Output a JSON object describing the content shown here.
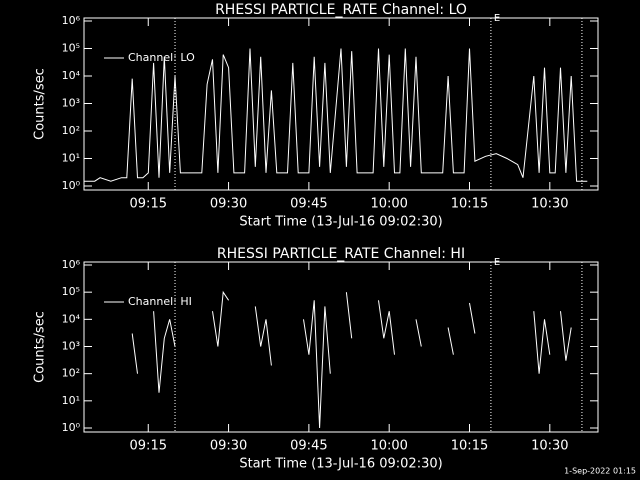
{
  "chart_data": [
    {
      "type": "line",
      "title": "RHESSI PARTICLE_RATE Channel: LO",
      "xlabel": "Start Time (13-Jul-16 09:02:30)",
      "ylabel": "Counts/sec",
      "x": [
        "09:03",
        "09:05",
        "09:06",
        "09:08",
        "09:10",
        "09:11",
        "09:12",
        "09:13",
        "09:14",
        "09:15",
        "09:16",
        "09:17",
        "09:18",
        "09:19",
        "09:20",
        "09:21",
        "09:25",
        "09:26",
        "09:27",
        "09:28",
        "09:29",
        "09:30",
        "09:31",
        "09:33",
        "09:34",
        "09:35",
        "09:36",
        "09:37",
        "09:38",
        "09:39",
        "09:41",
        "09:42",
        "09:43",
        "09:45",
        "09:46",
        "09:47",
        "09:48",
        "09:49",
        "09:51",
        "09:52",
        "09:53",
        "09:54",
        "09:57",
        "09:58",
        "09:59",
        "10:00",
        "10:01",
        "10:02",
        "10:03",
        "10:04",
        "10:05",
        "10:06",
        "10:10",
        "10:11",
        "10:12",
        "10:14",
        "10:15",
        "10:16",
        "10:18",
        "10:20",
        "10:22",
        "10:24",
        "10:25",
        "10:27",
        "10:28",
        "10:29",
        "10:30",
        "10:31",
        "10:32",
        "10:33",
        "10:34",
        "10:35",
        "10:37"
      ],
      "series": [
        {
          "name": "Channel: LO",
          "color": "#ffffff",
          "values": [
            1.5,
            1.5,
            2,
            1.5,
            2,
            2,
            8000,
            2,
            2,
            3,
            30000,
            2,
            50000,
            3,
            10000,
            3,
            3,
            5000,
            40000,
            3,
            60000,
            20000,
            3,
            3,
            100000,
            5,
            50000,
            3,
            3000,
            3,
            3,
            30000,
            3,
            3,
            50000,
            5,
            30000,
            3,
            100000,
            5,
            80000,
            3,
            3,
            100000,
            5,
            60000,
            3,
            3,
            100000,
            5,
            50000,
            3,
            3,
            10000,
            3,
            3,
            100000,
            8,
            12,
            15,
            10,
            6,
            2,
            10000,
            3,
            20000,
            3,
            3,
            20000,
            3,
            10000,
            1.5,
            1.5
          ]
        }
      ],
      "xlim": [
        "09:03",
        "10:39"
      ],
      "xticks": [
        "09:15",
        "09:30",
        "09:45",
        "10:00",
        "10:15",
        "10:30"
      ],
      "ylim": [
        1,
        1000000
      ],
      "log_scale": true,
      "yticks": [
        {
          "value": 1,
          "label": "10⁰"
        },
        {
          "value": 10,
          "label": "10¹"
        },
        {
          "value": 100,
          "label": "10²"
        },
        {
          "value": 1000,
          "label": "10³"
        },
        {
          "value": 10000,
          "label": "10⁴"
        },
        {
          "value": 100000,
          "label": "10⁵"
        },
        {
          "value": 1000000,
          "label": "10⁶"
        }
      ],
      "legend": "upper left",
      "vlines": [
        "09:20",
        "10:19",
        "10:36"
      ],
      "marker": {
        "x": "10:19",
        "label": "E"
      }
    },
    {
      "type": "line",
      "title": "RHESSI PARTICLE_RATE Channel: HI",
      "xlabel": "Start Time (13-Jul-16 09:02:30)",
      "ylabel": "Counts/sec",
      "x": [
        "09:12",
        "09:13",
        "09:14",
        "09:16",
        "09:17",
        "09:18",
        "09:19",
        "09:20",
        "09:22",
        "09:27",
        "09:28",
        "09:29",
        "09:30",
        "09:31",
        "09:35",
        "09:36",
        "09:37",
        "09:38",
        "09:39",
        "09:44",
        "09:45",
        "09:46",
        "09:47",
        "09:48",
        "09:49",
        "09:50",
        "09:52",
        "09:53",
        "09:54",
        "09:58",
        "09:59",
        "10:00",
        "10:01",
        "10:02",
        "10:05",
        "10:06",
        "10:07",
        "10:11",
        "10:12",
        "10:13",
        "10:15",
        "10:16",
        "10:17",
        "10:27",
        "10:28",
        "10:29",
        "10:30",
        "10:31",
        "10:32",
        "10:33",
        "10:34"
      ],
      "series": [
        {
          "name": "Channel: HI",
          "color": "#ffffff",
          "values": [
            3000,
            100,
            null,
            20000,
            20,
            2000,
            10000,
            1000,
            null,
            20000,
            1000,
            100000,
            50000,
            null,
            30000,
            1000,
            10000,
            200,
            null,
            10000,
            500,
            50000,
            1,
            30000,
            100,
            null,
            100000,
            2000,
            null,
            50000,
            2000,
            20000,
            500,
            null,
            10000,
            1000,
            null,
            5000,
            500,
            null,
            40000,
            3000,
            null,
            20000,
            100,
            10000,
            500,
            null,
            20000,
            300,
            5000
          ]
        }
      ],
      "xlim": [
        "09:03",
        "10:39"
      ],
      "xticks": [
        "09:15",
        "09:30",
        "09:45",
        "10:00",
        "10:15",
        "10:30"
      ],
      "ylim": [
        1,
        1000000
      ],
      "log_scale": true,
      "yticks": [
        {
          "value": 1,
          "label": "10⁰"
        },
        {
          "value": 10,
          "label": "10¹"
        },
        {
          "value": 100,
          "label": "10²"
        },
        {
          "value": 1000,
          "label": "10³"
        },
        {
          "value": 10000,
          "label": "10⁴"
        },
        {
          "value": 100000,
          "label": "10⁵"
        },
        {
          "value": 1000000,
          "label": "10⁶"
        }
      ],
      "legend": "upper left",
      "vlines": [
        "09:20",
        "10:19",
        "10:36"
      ],
      "marker": {
        "x": "10:19",
        "label": "E"
      }
    }
  ],
  "timestamp": "1-Sep-2022 01:15"
}
